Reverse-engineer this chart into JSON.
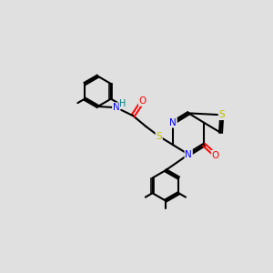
{
  "background_color": "#e0e0e0",
  "bond_color": "#000000",
  "atom_colors": {
    "N": "#0000ff",
    "O": "#ff0000",
    "S": "#bbbb00",
    "H": "#008080",
    "C": "#000000"
  },
  "figsize": [
    3.0,
    3.0
  ],
  "dpi": 100
}
